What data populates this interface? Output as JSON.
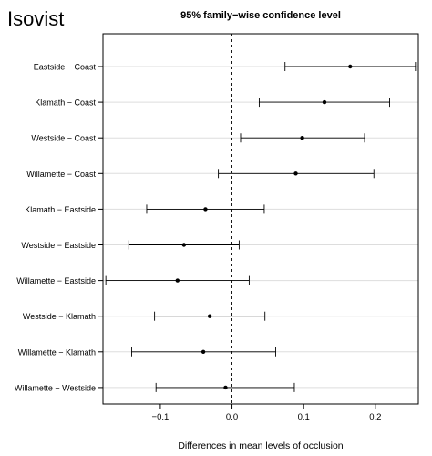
{
  "panel_label": "Isovist",
  "chart_data": {
    "type": "interval",
    "title": "95% family−wise confidence level",
    "xlabel": "Differences in mean levels of occlusion",
    "ylabel": "",
    "xlim": [
      -0.18,
      0.26
    ],
    "xticks": [
      -0.1,
      0.0,
      0.1,
      0.2
    ],
    "xtick_labels": [
      "−0.1",
      "0.0",
      "0.1",
      "0.2"
    ],
    "reference_line": 0,
    "grid": "horizontal",
    "comparisons": [
      {
        "label": "Eastside − Coast",
        "estimate": 0.165,
        "lower": 0.074,
        "upper": 0.256
      },
      {
        "label": "Klamath − Coast",
        "estimate": 0.129,
        "lower": 0.038,
        "upper": 0.22
      },
      {
        "label": "Westside − Coast",
        "estimate": 0.098,
        "lower": 0.012,
        "upper": 0.185
      },
      {
        "label": "Willamette − Coast",
        "estimate": 0.089,
        "lower": -0.019,
        "upper": 0.198
      },
      {
        "label": "Klamath − Eastside",
        "estimate": -0.037,
        "lower": -0.119,
        "upper": 0.045
      },
      {
        "label": "Westside − Eastside",
        "estimate": -0.067,
        "lower": -0.144,
        "upper": 0.01
      },
      {
        "label": "Willamette − Eastside",
        "estimate": -0.076,
        "lower": -0.176,
        "upper": 0.024
      },
      {
        "label": "Westside − Klamath",
        "estimate": -0.031,
        "lower": -0.108,
        "upper": 0.046
      },
      {
        "label": "Willamette − Klamath",
        "estimate": -0.04,
        "lower": -0.14,
        "upper": 0.061
      },
      {
        "label": "Willamette − Westside",
        "estimate": -0.009,
        "lower": -0.106,
        "upper": 0.087
      }
    ]
  }
}
